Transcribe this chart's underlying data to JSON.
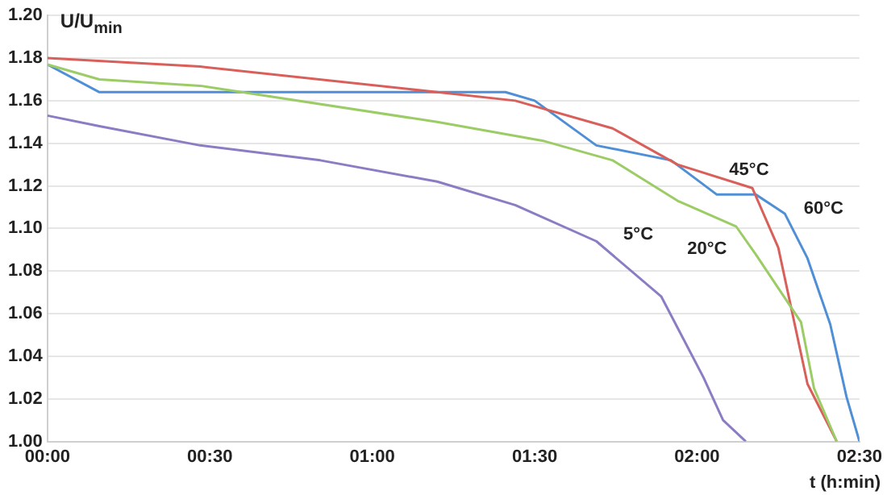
{
  "chart_data": {
    "type": "line",
    "ylabel": "U/U$_{min}$",
    "xlabel": "t (h:min)",
    "xlim": [
      0,
      2.5
    ],
    "ylim": [
      1.0,
      1.2
    ],
    "xticks": [
      {
        "value": 0,
        "label": "00:00"
      },
      {
        "value": 0.5,
        "label": "00:30"
      },
      {
        "value": 1,
        "label": "01:00"
      },
      {
        "value": 1.5,
        "label": "01:30"
      },
      {
        "value": 2,
        "label": "02:00"
      },
      {
        "value": 2.5,
        "label": "02:30"
      }
    ],
    "yticks": [
      {
        "value": 1.0,
        "label": "1.00"
      },
      {
        "value": 1.02,
        "label": "1.02"
      },
      {
        "value": 1.04,
        "label": "1.04"
      },
      {
        "value": 1.06,
        "label": "1.06"
      },
      {
        "value": 1.08,
        "label": "1.08"
      },
      {
        "value": 1.1,
        "label": "1.10"
      },
      {
        "value": 1.12,
        "label": "1.12"
      },
      {
        "value": 1.14,
        "label": "1.14"
      },
      {
        "value": 1.16,
        "label": "1.16"
      },
      {
        "value": 1.18,
        "label": "1.18"
      },
      {
        "value": 1.2,
        "label": "1.20"
      }
    ],
    "grid": "y",
    "legend": false,
    "marker": "none",
    "line_style": "solid",
    "series": [
      {
        "name": "5°C",
        "color": "#8c7cc4",
        "x": [
          0,
          0.16,
          0.47,
          0.84,
          1.2,
          1.44,
          1.69,
          1.89,
          2.02,
          2.08,
          2.15
        ],
        "values": [
          1.153,
          1.148,
          1.139,
          1.132,
          1.122,
          1.111,
          1.094,
          1.068,
          1.03,
          1.01,
          1.0
        ]
      },
      {
        "name": "20°C",
        "color": "#9ccc65",
        "x": [
          0,
          0.16,
          0.47,
          1.2,
          1.53,
          1.74,
          1.94,
          2.12,
          2.18,
          2.32,
          2.36,
          2.43
        ],
        "values": [
          1.177,
          1.17,
          1.167,
          1.15,
          1.141,
          1.132,
          1.113,
          1.101,
          1.088,
          1.056,
          1.025,
          1.0
        ]
      },
      {
        "name": "45°C",
        "color": "#d95f5a",
        "x": [
          0,
          0.47,
          1.2,
          1.44,
          1.74,
          1.94,
          2.17,
          2.25,
          2.34,
          2.43
        ],
        "values": [
          1.18,
          1.176,
          1.164,
          1.16,
          1.147,
          1.13,
          1.119,
          1.091,
          1.027,
          1.0
        ]
      },
      {
        "name": "60°C",
        "color": "#4f8fd6",
        "x": [
          0,
          0.16,
          1.41,
          1.5,
          1.69,
          1.92,
          2.06,
          2.18,
          2.27,
          2.34,
          2.41,
          2.46,
          2.5
        ],
        "values": [
          1.177,
          1.164,
          1.164,
          1.16,
          1.139,
          1.132,
          1.116,
          1.116,
          1.107,
          1.086,
          1.055,
          1.021,
          1.0
        ]
      }
    ]
  }
}
